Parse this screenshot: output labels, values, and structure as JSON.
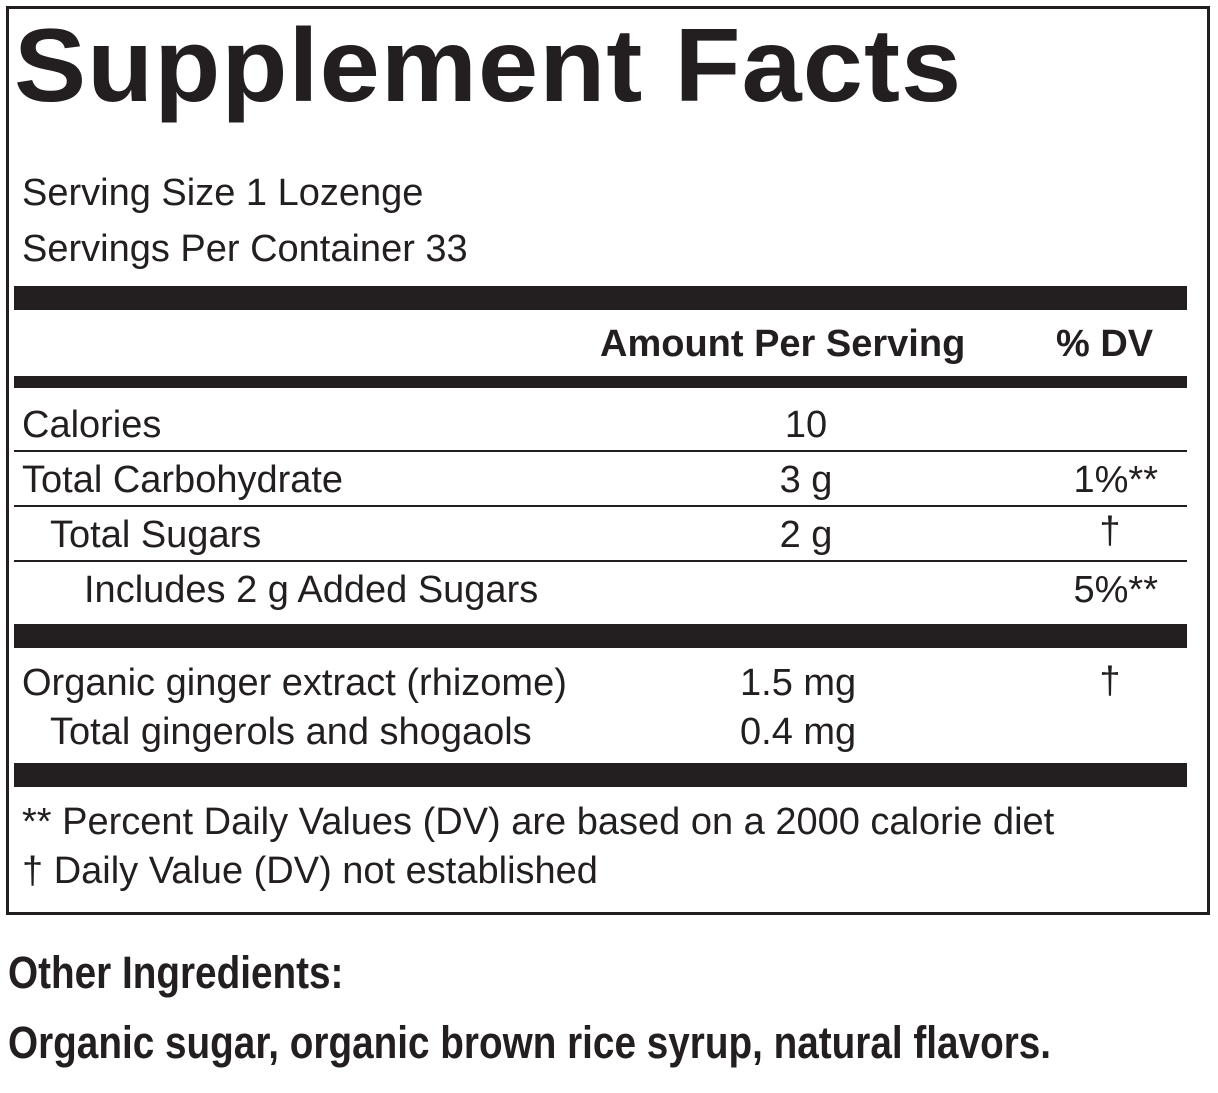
{
  "panel": {
    "title": "Supplement Facts",
    "serving_size": "Serving Size 1 Lozenge",
    "servings_per_container": "Servings Per Container 33",
    "header": {
      "amount": "Amount Per Serving",
      "dv": "% DV"
    },
    "rows": [
      {
        "name": "Calories",
        "amount": "10",
        "dv": ""
      },
      {
        "name": "Total Carbohydrate",
        "amount": "3 g",
        "dv": "1%**"
      },
      {
        "name": "Total Sugars",
        "amount": "2 g",
        "dv": "†"
      },
      {
        "name": "Includes 2 g Added Sugars",
        "amount": "",
        "dv": "5%**"
      }
    ],
    "ingredients": [
      {
        "name": "Organic ginger extract (rhizome)",
        "amount": "1.5 mg",
        "dv": "†"
      },
      {
        "name": "Total gingerols and shogaols",
        "amount": "0.4 mg",
        "dv": ""
      }
    ],
    "footnotes": [
      "** Percent Daily Values (DV) are based on a 2000 calorie diet",
      "† Daily Value (DV) not established"
    ]
  },
  "other_ingredients": {
    "heading": "Other Ingredients:",
    "text": "Organic sugar, organic brown rice syrup, natural flavors."
  }
}
